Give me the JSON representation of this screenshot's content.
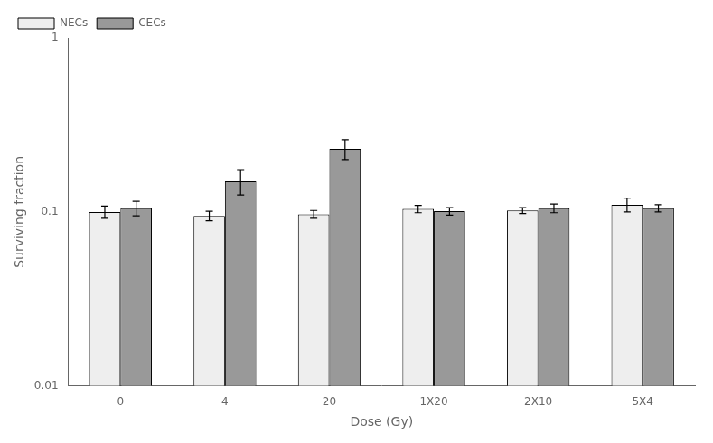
{
  "chart_data": {
    "type": "bar",
    "categories": [
      "0",
      "4",
      "20",
      "1X20",
      "2X10",
      "5X4"
    ],
    "series": [
      {
        "name": "NECs",
        "color": "#eeeeee",
        "values": [
          0.1,
          0.095,
          0.097,
          0.104,
          0.102,
          0.11
        ],
        "errors": [
          0.008,
          0.006,
          0.005,
          0.005,
          0.004,
          0.01
        ]
      },
      {
        "name": "CECs",
        "color": "#999999",
        "values": [
          0.105,
          0.15,
          0.23,
          0.101,
          0.105,
          0.105
        ],
        "errors": [
          0.01,
          0.025,
          0.03,
          0.005,
          0.006,
          0.005
        ]
      }
    ],
    "x_label": "Dose (Gy)",
    "y_label": "Surviving fraction",
    "log": "y",
    "ylim": [
      0.01,
      1.0
    ],
    "yticks": [
      0.01,
      0.1,
      1
    ],
    "grid": false,
    "legend": "upper left"
  }
}
